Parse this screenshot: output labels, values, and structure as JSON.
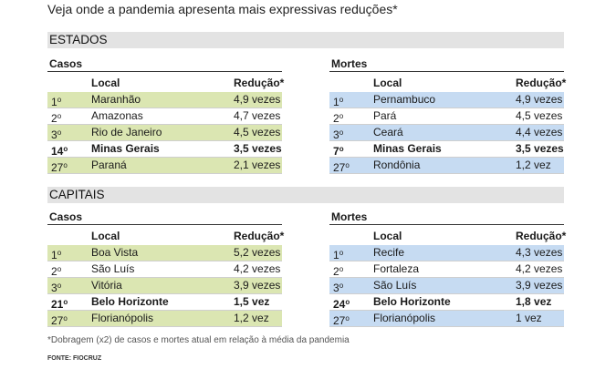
{
  "headline": "Veja onde a pandemia apresenta mais expressivas reduções*",
  "sections": [
    {
      "title": "ESTADOS",
      "casos": {
        "title": "Casos",
        "headers": {
          "local": "Local",
          "reducao": "Redução*"
        },
        "rows": [
          {
            "rank": "1",
            "suffix": "o",
            "local": "Maranhão",
            "reducao": "4,9 vezes",
            "highlight": true,
            "bold": false
          },
          {
            "rank": "2",
            "suffix": "o",
            "local": "Amazonas",
            "reducao": "4,7 vezes",
            "highlight": false,
            "bold": false
          },
          {
            "rank": "3",
            "suffix": "o",
            "local": "Rio de Janeiro",
            "reducao": "4,5 vezes",
            "highlight": true,
            "bold": false
          },
          {
            "rank": "14",
            "suffix": "o",
            "local": "Minas Gerais",
            "reducao": "3,5 vezes",
            "highlight": false,
            "bold": true
          },
          {
            "rank": "27",
            "suffix": "o",
            "local": "Paraná",
            "reducao": "2,1 vezes",
            "highlight": true,
            "bold": false
          }
        ]
      },
      "mortes": {
        "title": "Mortes",
        "headers": {
          "local": "Local",
          "reducao": "Redução*"
        },
        "rows": [
          {
            "rank": "1",
            "suffix": "o",
            "local": "Pernambuco",
            "reducao": "4,9 vezes",
            "highlight": true,
            "bold": false
          },
          {
            "rank": "2",
            "suffix": "o",
            "local": "Pará",
            "reducao": "4,5 vezes",
            "highlight": false,
            "bold": false
          },
          {
            "rank": "3",
            "suffix": "o",
            "local": "Ceará",
            "reducao": "4,4 vezes",
            "highlight": true,
            "bold": false
          },
          {
            "rank": "7",
            "suffix": "o",
            "local": "Minas Gerais",
            "reducao": "3,5 vezes",
            "highlight": false,
            "bold": true
          },
          {
            "rank": "27",
            "suffix": "o",
            "local": "Rondônia",
            "reducao": "1,2 vez",
            "highlight": true,
            "bold": false
          }
        ]
      }
    },
    {
      "title": "CAPITAIS",
      "casos": {
        "title": "Casos",
        "headers": {
          "local": "Local",
          "reducao": "Redução*"
        },
        "rows": [
          {
            "rank": "1",
            "suffix": "o",
            "local": "Boa Vista",
            "reducao": "5,2 vezes",
            "highlight": true,
            "bold": false
          },
          {
            "rank": "2",
            "suffix": "o",
            "local": "São Luís",
            "reducao": "4,2 vezes",
            "highlight": false,
            "bold": false
          },
          {
            "rank": "3",
            "suffix": "o",
            "local": "Vitória",
            "reducao": "3,9 vezes",
            "highlight": true,
            "bold": false
          },
          {
            "rank": "21",
            "suffix": "o",
            "local": "Belo Horizonte",
            "reducao": "1,5 vez",
            "highlight": false,
            "bold": true
          },
          {
            "rank": "27",
            "suffix": "o",
            "local": "Florianópolis",
            "reducao": "1,2 vez",
            "highlight": true,
            "bold": false
          }
        ]
      },
      "mortes": {
        "title": "Mortes",
        "headers": {
          "local": "Local",
          "reducao": "Redução*"
        },
        "rows": [
          {
            "rank": "1",
            "suffix": "o",
            "local": "Recife",
            "reducao": "4,3 vezes",
            "highlight": true,
            "bold": false
          },
          {
            "rank": "2",
            "suffix": "o",
            "local": "Fortaleza",
            "reducao": "4,2 vezes",
            "highlight": false,
            "bold": false
          },
          {
            "rank": "3",
            "suffix": "o",
            "local": "São Luís",
            "reducao": "3,9 vezes",
            "highlight": true,
            "bold": false
          },
          {
            "rank": "24",
            "suffix": "o",
            "local": "Belo Horizonte",
            "reducao": "1,8 vez",
            "highlight": false,
            "bold": true
          },
          {
            "rank": "27",
            "suffix": "o",
            "local": "Florianópolis",
            "reducao": "1 vez",
            "highlight": true,
            "bold": false
          }
        ]
      }
    }
  ],
  "note": "*Dobragem (x2) de casos e mortes atual em relação à média da pandemia",
  "source": "FONTE: FIOCRUZ",
  "colors": {
    "casos_highlight": "#dbe6b2",
    "mortes_highlight": "#c6dbf2",
    "band": "#e3e3e3"
  }
}
